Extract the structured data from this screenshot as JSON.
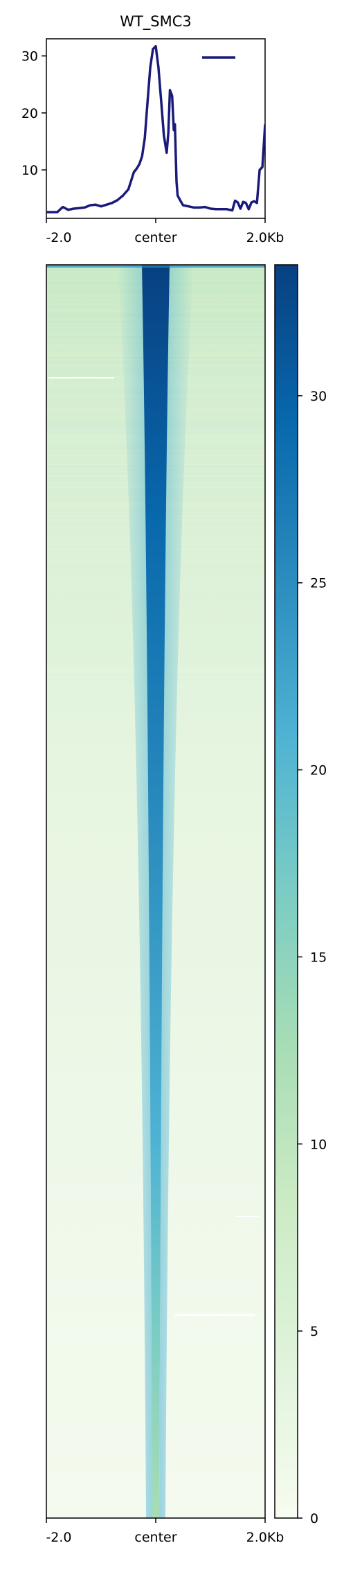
{
  "chart_data": [
    {
      "type": "line",
      "title": "WT_SMC3",
      "x": [
        -2000,
        -1900,
        -1800,
        -1700,
        -1600,
        -1500,
        -1400,
        -1300,
        -1200,
        -1100,
        -1000,
        -900,
        -800,
        -700,
        -600,
        -500,
        -400,
        -350,
        -300,
        -250,
        -200,
        -150,
        -100,
        -50,
        0,
        50,
        100,
        150,
        200,
        230,
        260,
        300,
        330,
        350,
        380,
        400,
        450,
        500,
        600,
        700,
        800,
        900,
        1000,
        1100,
        1200,
        1300,
        1400,
        1450,
        1500,
        1550,
        1600,
        1650,
        1700,
        1750,
        1800,
        1850,
        1900,
        1950,
        2000
      ],
      "series": [
        {
          "name": "",
          "color": "#1a1a7a",
          "values": [
            2.6,
            2.6,
            2.6,
            3.5,
            3.0,
            3.2,
            3.3,
            3.4,
            3.8,
            3.9,
            3.6,
            3.9,
            4.2,
            4.7,
            5.5,
            6.6,
            9.6,
            10.2,
            11.0,
            12.4,
            15.6,
            22.0,
            28.0,
            31.2,
            31.7,
            28.0,
            22.0,
            16.0,
            13.0,
            16.5,
            24.0,
            23.0,
            17.0,
            18.0,
            8.0,
            5.5,
            4.6,
            3.8,
            3.6,
            3.4,
            3.4,
            3.5,
            3.2,
            3.1,
            3.1,
            3.1,
            2.9,
            4.6,
            4.3,
            3.2,
            4.4,
            4.2,
            3.1,
            4.3,
            4.5,
            4.2,
            10.0,
            10.5,
            18.0
          ]
        }
      ],
      "xticks": [
        "-2.0",
        "center",
        "2.0Kb"
      ],
      "yticks": [
        10,
        20,
        30
      ],
      "ylim": [
        1.5,
        33
      ],
      "legend": "top-right"
    },
    {
      "type": "heatmap",
      "xticks": [
        "-2.0",
        "center",
        "2.0Kb"
      ],
      "colormap": "GnBu",
      "colorbar": {
        "min": 0,
        "max": 33.5,
        "ticks": [
          0,
          5,
          10,
          15,
          20,
          25,
          30
        ]
      },
      "low_color": "#f7fcf0",
      "high_color": "#084081"
    }
  ]
}
